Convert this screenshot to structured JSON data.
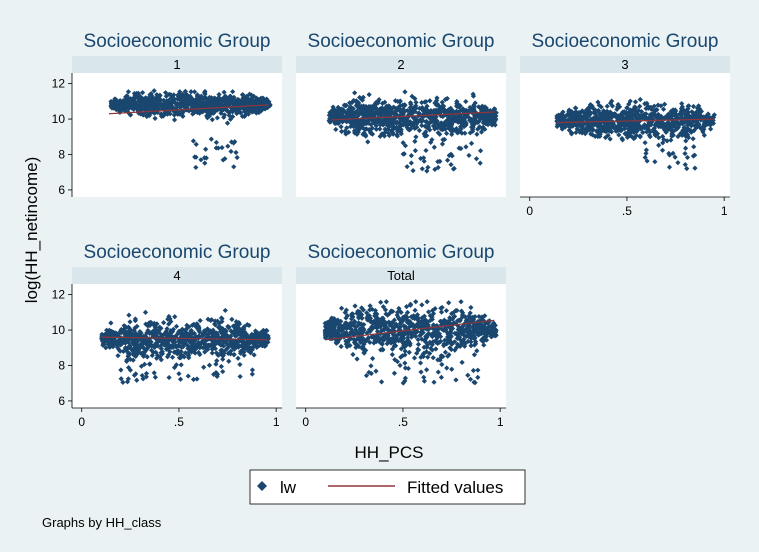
{
  "chart_data": {
    "type": "scatter",
    "ylabel": "log(HH_netincome)",
    "xlabel": "HH_PCS",
    "note": "Graphs by HH_class",
    "panel_title": "Socioeconomic Group",
    "xticks": [
      0,
      0.5,
      1
    ],
    "xtick_labels": [
      "0",
      ".5",
      "1"
    ],
    "xlim": [
      -0.05,
      1.03
    ],
    "yticks": [
      6,
      8,
      10,
      12
    ],
    "ylim": [
      5.6,
      12.6
    ],
    "legend": {
      "position": "bottom-center",
      "entries": [
        "lw",
        "Fitted values"
      ]
    },
    "colors": {
      "scatter": "#1a476f",
      "fitted": "#90353b",
      "strip": "#d9e6eb",
      "panel": "#ffffff",
      "background": "#eaf2f3"
    },
    "panels": [
      {
        "label": "1",
        "cloud": {
          "x_range": [
            0.15,
            0.97
          ],
          "y_center": 10.8,
          "y_spread": 0.8,
          "low_tail_x": [
            0.55,
            0.8
          ],
          "low_tail_min": 7.2
        },
        "fitted": {
          "x": [
            0.14,
            0.96
          ],
          "y": [
            10.3,
            10.8
          ]
        }
      },
      {
        "label": "2",
        "cloud": {
          "x_range": [
            0.12,
            0.98
          ],
          "y_center": 10.1,
          "y_spread": 1.3,
          "low_tail_x": [
            0.5,
            0.9
          ],
          "low_tail_min": 7.0
        },
        "fitted": {
          "x": [
            0.13,
            0.97
          ],
          "y": [
            9.95,
            10.4
          ]
        }
      },
      {
        "label": "3",
        "cloud": {
          "x_range": [
            0.14,
            0.95
          ],
          "y_center": 9.9,
          "y_spread": 1.1,
          "low_tail_x": [
            0.55,
            0.85
          ],
          "low_tail_min": 7.2
        },
        "fitted": {
          "x": [
            0.14,
            0.95
          ],
          "y": [
            9.8,
            10.0
          ]
        }
      },
      {
        "label": "4",
        "cloud": {
          "x_range": [
            0.1,
            0.96
          ],
          "y_center": 9.5,
          "y_spread": 1.3,
          "low_tail_x": [
            0.2,
            0.9
          ],
          "low_tail_min": 7.0
        },
        "fitted": {
          "x": [
            0.1,
            0.96
          ],
          "y": [
            9.6,
            9.45
          ]
        }
      },
      {
        "label": "Total",
        "cloud": {
          "x_range": [
            0.1,
            0.98
          ],
          "y_center": 10.0,
          "y_spread": 1.5,
          "low_tail_x": [
            0.3,
            0.9
          ],
          "low_tail_min": 7.0
        },
        "fitted": {
          "x": [
            0.1,
            0.97
          ],
          "y": [
            9.45,
            10.55
          ]
        }
      }
    ]
  }
}
